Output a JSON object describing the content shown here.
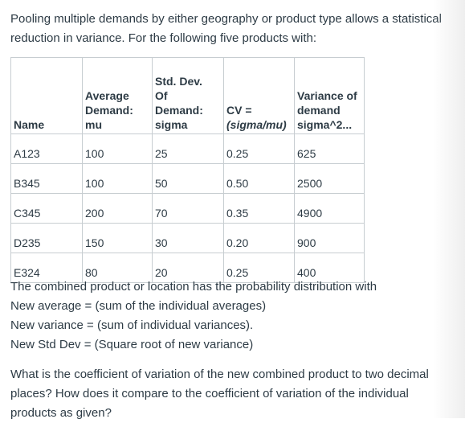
{
  "intro": "Pooling multiple demands by either geography or product type allows a statistical reduction in variance. For the following five products with:",
  "table": {
    "headers": [
      [
        "Name"
      ],
      [
        "Average",
        "Demand:",
        "mu"
      ],
      [
        "Std. Dev.",
        "Of",
        "Demand:",
        "sigma"
      ],
      [
        "CV =",
        "(sigma/mu)"
      ],
      [
        "Variance of",
        "demand",
        "sigma^2..."
      ]
    ],
    "rows": [
      [
        "A123",
        "100",
        "25",
        "0.25",
        "625"
      ],
      [
        "B345",
        "100",
        "50",
        "0.50",
        "2500"
      ],
      [
        "C345",
        "200",
        "70",
        "0.35",
        "4900"
      ],
      [
        "D235",
        "150",
        "30",
        "0.20",
        "900"
      ],
      [
        "E324",
        "80",
        "20",
        "0.25",
        "400"
      ]
    ]
  },
  "combined": [
    "The combined product or location has the probability distribution with",
    "New average = (sum of the individual averages)",
    "New variance = (sum of individual variances).",
    "New Std Dev = (Square root of new variance)"
  ],
  "question": "What is the coefficient of variation of the new combined product to two decimal places? How does it compare to the coefficient of variation of the individual products as given?"
}
